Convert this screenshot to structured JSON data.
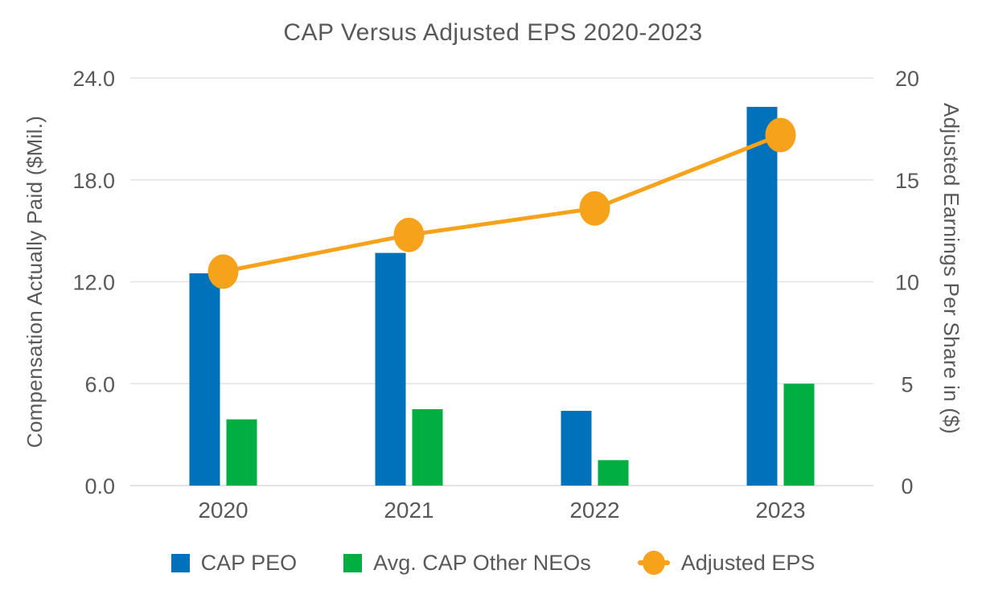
{
  "chart_data": {
    "type": "bar+line combo",
    "title": "CAP Versus Adjusted EPS 2020-2023",
    "categories": [
      "2020",
      "2021",
      "2022",
      "2023"
    ],
    "series": [
      {
        "name": "CAP PEO",
        "type": "bar",
        "axis": "left",
        "color": "#0072BC",
        "values": [
          12.5,
          13.7,
          4.4,
          22.3
        ]
      },
      {
        "name": "Avg. CAP Other NEOs",
        "type": "bar",
        "axis": "left",
        "color": "#00AE42",
        "values": [
          3.9,
          4.5,
          1.5,
          6.0
        ]
      },
      {
        "name": "Adjusted EPS",
        "type": "line",
        "axis": "right",
        "color": "#F7A21B",
        "values": [
          10.5,
          12.3,
          13.6,
          17.2
        ]
      }
    ],
    "left_axis": {
      "label": "Compensation Actually Paid ($Mil.)",
      "min": 0,
      "max": 24,
      "step": 6,
      "tick_labels": [
        "0.0",
        "6.0",
        "12.0",
        "18.0",
        "24.0"
      ]
    },
    "right_axis": {
      "label": "Adjusted Earnings Per Share in ($)",
      "min": 0,
      "max": 20,
      "step": 5,
      "tick_labels": [
        "0",
        "5",
        "10",
        "15",
        "20"
      ]
    },
    "grid": "horizontal gridlines on",
    "legend_position": "bottom",
    "style": {
      "text_color": "#595959",
      "grid_color": "#E3E3E3",
      "baseline_color": "#DADADA"
    }
  }
}
